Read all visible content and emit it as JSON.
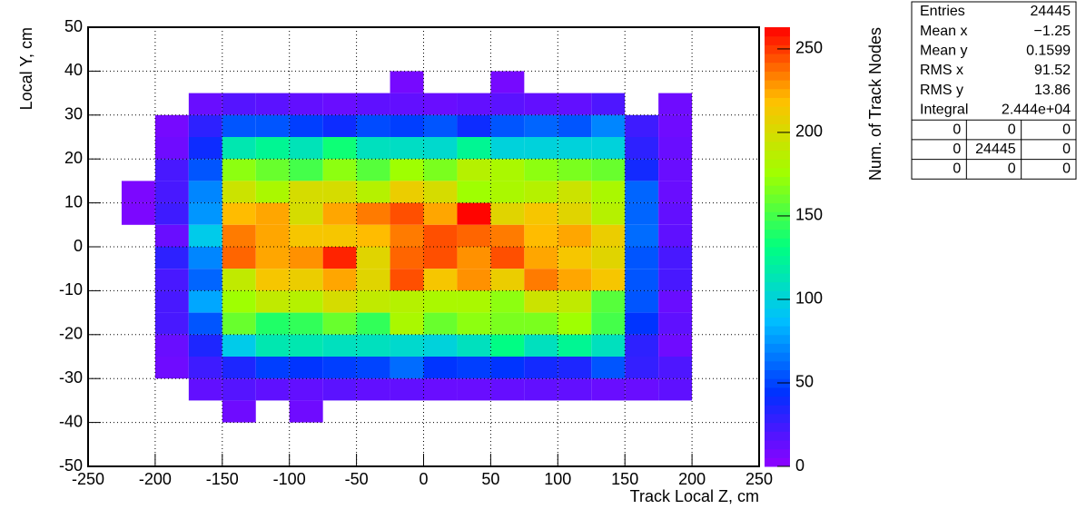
{
  "chart_data": {
    "type": "heatmap",
    "x_label": "Track Local Z, cm",
    "y_label": "Local Y, cm",
    "z_label": "Num. of Track Nodes",
    "xbins": [
      -225,
      -200,
      -175,
      -150,
      -125,
      -100,
      -75,
      -50,
      -25,
      0,
      25,
      50,
      75,
      100,
      125,
      150,
      175,
      200
    ],
    "ybins": [
      40,
      35,
      30,
      25,
      20,
      15,
      10,
      5,
      0,
      -5,
      -10,
      -15,
      -20,
      -25,
      -30,
      -35,
      -40
    ],
    "values": [
      [
        null,
        null,
        null,
        null,
        null,
        null,
        null,
        null,
        8,
        null,
        null,
        8,
        null,
        null,
        null,
        null,
        null
      ],
      [
        null,
        null,
        12,
        18,
        16,
        14,
        12,
        15,
        14,
        12,
        14,
        16,
        14,
        14,
        20,
        null,
        10
      ],
      [
        null,
        8,
        30,
        55,
        55,
        48,
        40,
        52,
        48,
        55,
        40,
        55,
        60,
        55,
        70,
        25,
        10
      ],
      [
        null,
        10,
        40,
        115,
        125,
        112,
        135,
        110,
        108,
        105,
        125,
        100,
        100,
        100,
        100,
        30,
        12
      ],
      [
        null,
        22,
        55,
        170,
        160,
        150,
        170,
        155,
        175,
        165,
        185,
        180,
        170,
        165,
        160,
        38,
        12
      ],
      [
        6,
        22,
        70,
        195,
        180,
        200,
        200,
        185,
        210,
        200,
        175,
        180,
        185,
        195,
        180,
        60,
        12
      ],
      [
        6,
        25,
        75,
        220,
        225,
        200,
        225,
        235,
        245,
        225,
        262,
        205,
        215,
        205,
        185,
        60,
        14
      ],
      [
        null,
        12,
        95,
        235,
        225,
        215,
        215,
        220,
        235,
        245,
        240,
        235,
        220,
        225,
        210,
        62,
        15
      ],
      [
        null,
        30,
        70,
        240,
        225,
        230,
        255,
        205,
        240,
        245,
        230,
        245,
        225,
        215,
        205,
        55,
        22
      ],
      [
        null,
        22,
        60,
        190,
        215,
        210,
        225,
        205,
        245,
        215,
        230,
        210,
        235,
        225,
        215,
        55,
        22
      ],
      [
        null,
        22,
        80,
        175,
        190,
        185,
        200,
        190,
        185,
        180,
        180,
        170,
        195,
        190,
        155,
        55,
        12
      ],
      [
        null,
        22,
        55,
        160,
        140,
        145,
        160,
        145,
        180,
        160,
        170,
        165,
        165,
        175,
        150,
        45,
        15
      ],
      [
        null,
        12,
        35,
        95,
        115,
        115,
        110,
        110,
        105,
        100,
        110,
        130,
        110,
        125,
        110,
        30,
        10
      ],
      [
        null,
        10,
        25,
        35,
        48,
        45,
        48,
        50,
        62,
        45,
        48,
        45,
        38,
        35,
        55,
        28,
        20
      ],
      [
        null,
        null,
        14,
        18,
        15,
        14,
        16,
        14,
        14,
        12,
        12,
        13,
        14,
        14,
        12,
        12,
        15
      ],
      [
        null,
        null,
        null,
        10,
        null,
        10,
        null,
        null,
        null,
        null,
        null,
        null,
        null,
        null,
        null,
        null,
        null
      ]
    ],
    "xlim": [
      -250,
      250
    ],
    "ylim": [
      -50,
      50
    ],
    "zlim": [
      0,
      263
    ],
    "xticks": [
      -250,
      -200,
      -150,
      -100,
      -50,
      0,
      50,
      100,
      150,
      200,
      250
    ],
    "yticks": [
      -50,
      -40,
      -30,
      -20,
      -10,
      0,
      10,
      20,
      30,
      40,
      50
    ],
    "zticks": [
      0,
      50,
      100,
      150,
      200,
      250
    ],
    "grid": true,
    "colorscale": [
      "#9000ff",
      "#0030ff",
      "#00c0ff",
      "#00ff80",
      "#a0ff00",
      "#ffc000",
      "#ff0000"
    ],
    "stats": {
      "rows": [
        [
          "Entries",
          "24445"
        ],
        [
          "Mean x",
          "−1.25"
        ],
        [
          "Mean y",
          "0.1599"
        ],
        [
          "RMS x",
          "91.52"
        ],
        [
          "RMS y",
          "13.86"
        ],
        [
          "Integral",
          "2.444e+04"
        ]
      ],
      "table": [
        [
          "0",
          "0",
          "0"
        ],
        [
          "0",
          "24445",
          "0"
        ],
        [
          "0",
          "0",
          "0"
        ]
      ]
    }
  }
}
